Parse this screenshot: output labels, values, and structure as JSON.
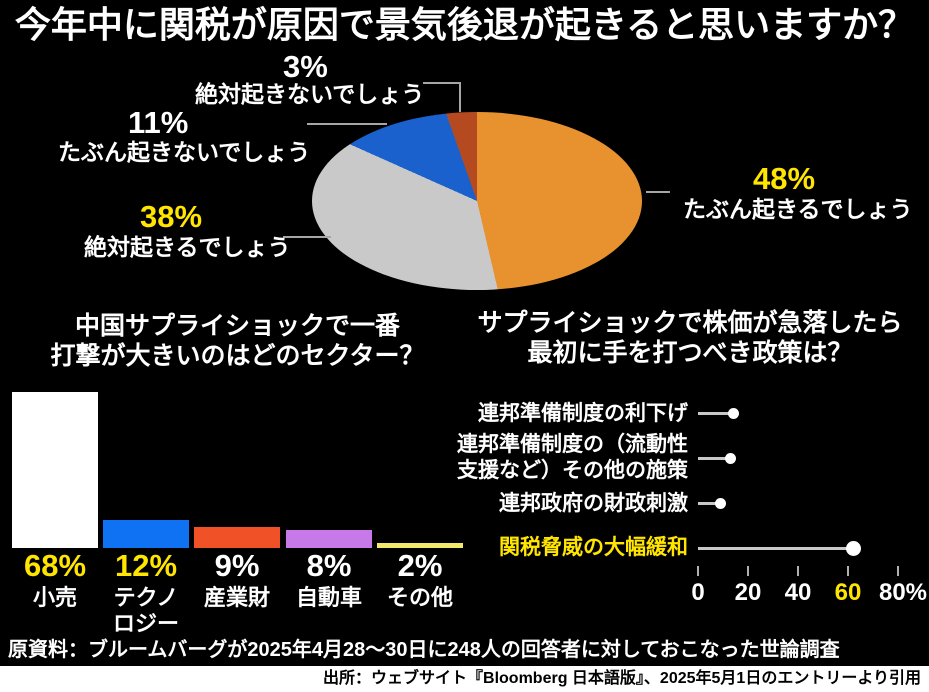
{
  "title": "今年中に関税が原因で景気後退が起きると思いますか？",
  "colors": {
    "background": "#000000",
    "highlight_yellow": "#ffe500",
    "callout_line": "#a6a6a6",
    "lollipop_stem": "#c8c8c8",
    "lollipop_dot": "#ffffff"
  },
  "pie": {
    "slices": [
      {
        "label": "たぶん起きるでしょう",
        "pct_label": "48%",
        "value": 48,
        "color": "#e8922f",
        "highlighted": true
      },
      {
        "label": "絶対起きるでしょう",
        "pct_label": "38%",
        "value": 38,
        "color": "#c9c9c9",
        "highlighted": true
      },
      {
        "label": "たぶん起きないでしょう",
        "pct_label": "11%",
        "value": 11,
        "color": "#1a61ce",
        "highlighted": false
      },
      {
        "label": "絶対起きないでしょう",
        "pct_label": "3%",
        "value": 3,
        "color": "#b54a20",
        "highlighted": false
      }
    ]
  },
  "sector_chart": {
    "title_lines": [
      "中国サプライショックで一番",
      "打撃が大きいのはどのセクター？"
    ],
    "bars": [
      {
        "pct_label": "68%",
        "value": 68,
        "color": "#ffffff",
        "pct_highlighted": true,
        "name_lines": [
          "小売"
        ]
      },
      {
        "pct_label": "12%",
        "value": 12,
        "color": "#0e72f2",
        "pct_highlighted": true,
        "name_lines": [
          "テクノ",
          "ロジー"
        ]
      },
      {
        "pct_label": "9%",
        "value": 9,
        "color": "#f05126",
        "pct_highlighted": false,
        "name_lines": [
          "産業財"
        ]
      },
      {
        "pct_label": "8%",
        "value": 8,
        "color": "#c779e9",
        "pct_highlighted": false,
        "name_lines": [
          "自動車"
        ]
      },
      {
        "pct_label": "2%",
        "value": 2,
        "color": "#f2e96a",
        "pct_highlighted": false,
        "name_lines": [
          "その他"
        ]
      }
    ]
  },
  "policy_chart": {
    "title_lines": [
      "サプライショックで株価が急落したら",
      "最初に手を打つべき政策は？"
    ],
    "items": [
      {
        "label_lines": [
          "連邦準備制度の利下げ",
          ""
        ],
        "value": 14,
        "highlighted": false
      },
      {
        "label_lines": [
          "連邦準備制度の（流動性",
          "支援など）その他の施策"
        ],
        "value": 13,
        "highlighted": false
      },
      {
        "label_lines": [
          "連邦政府の財政刺激",
          ""
        ],
        "value": 9,
        "highlighted": false
      },
      {
        "label_lines": [
          "関税脅威の大幅緩和",
          ""
        ],
        "value": 62,
        "highlighted": true
      }
    ],
    "axis_ticks": [
      {
        "label": "0",
        "highlighted": false
      },
      {
        "label": "20",
        "highlighted": false
      },
      {
        "label": "40",
        "highlighted": false
      },
      {
        "label": "60",
        "highlighted": true
      },
      {
        "label": "80%",
        "highlighted": false
      }
    ]
  },
  "footer": {
    "source_note": "原資料：ブルームバーグが2025年4月28～30日に248人の回答者に対しておこなった世論調査",
    "citation": "出所：ウェブサイト『Bloomberg 日本語版』、2025年5月1日のエントリーより引用"
  },
  "chart_data": [
    {
      "type": "pie",
      "title": "今年中に関税が原因で景気後退が起きると思いますか？",
      "categories": [
        "たぶん起きるでしょう",
        "絶対起きるでしょう",
        "たぶん起きないでしょう",
        "絶対起きないでしょう"
      ],
      "values": [
        48,
        38,
        11,
        3
      ],
      "unit": "%",
      "colors": [
        "#e8922f",
        "#c9c9c9",
        "#1a61ce",
        "#b54a20"
      ],
      "legend_position": "callouts",
      "start_angle_deg": 0,
      "direction": "clockwise"
    },
    {
      "type": "bar",
      "title": "中国サプライショックで一番打撃が大きいのはどのセクター？",
      "categories": [
        "小売",
        "テクノロジー",
        "産業財",
        "自動車",
        "その他"
      ],
      "values": [
        68,
        12,
        9,
        8,
        2
      ],
      "unit": "%",
      "colors": [
        "#ffffff",
        "#0e72f2",
        "#f05126",
        "#c779e9",
        "#f2e96a"
      ],
      "ylim": [
        0,
        68
      ],
      "grid": false,
      "data_labels": [
        "68%",
        "12%",
        "9%",
        "8%",
        "2%"
      ]
    },
    {
      "type": "bar",
      "style": "lollipop",
      "orientation": "horizontal",
      "title": "サプライショックで株価が急落したら最初に手を打つべき政策は？",
      "categories": [
        "連邦準備制度の利下げ",
        "連邦準備制度の（流動性支援など）その他の施策",
        "連邦政府の財政刺激",
        "関税脅威の大幅緩和"
      ],
      "values": [
        14,
        13,
        9,
        62
      ],
      "unit": "%",
      "xlim": [
        0,
        80
      ],
      "xticks": [
        0,
        20,
        40,
        60,
        80
      ],
      "grid": false,
      "highlighted_category": "関税脅威の大幅緩和"
    }
  ]
}
